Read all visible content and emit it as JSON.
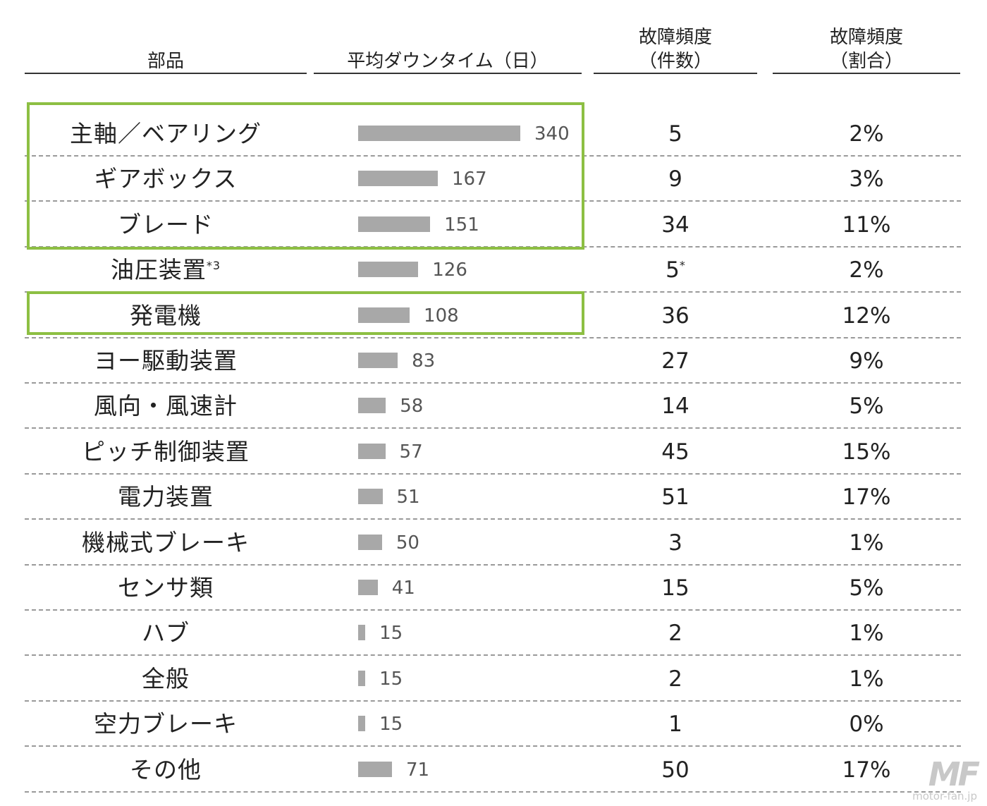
{
  "headers": {
    "part": "部品",
    "downtime": "平均ダウンタイム（日）",
    "freq_count_l1": "故障頻度",
    "freq_count_l2": "（件数）",
    "freq_ratio_l1": "故障頻度",
    "freq_ratio_l2": "（割合）"
  },
  "watermark": {
    "logo": "MF",
    "url": "motor-fan.jp"
  },
  "colors": {
    "bar": "#a8a8a8",
    "highlight": "#8dbf43",
    "dash": "#9a9a9a"
  },
  "chart_data": {
    "type": "table",
    "columns": [
      "部品",
      "平均ダウンタイム（日）",
      "故障頻度（件数）",
      "故障頻度（割合）"
    ],
    "bar_axis_max": 340,
    "highlighted_rows": [
      0,
      1,
      2,
      4
    ],
    "rows": [
      {
        "part": "主軸／ベアリング",
        "downtime": 340,
        "count": "5",
        "ratio": "2%"
      },
      {
        "part": "ギアボックス",
        "downtime": 167,
        "count": "9",
        "ratio": "3%"
      },
      {
        "part": "ブレード",
        "downtime": 151,
        "count": "34",
        "ratio": "11%"
      },
      {
        "part": "油圧装置",
        "part_note": "*3",
        "downtime": 126,
        "count": "5",
        "count_note": "*",
        "ratio": "2%"
      },
      {
        "part": "発電機",
        "downtime": 108,
        "count": "36",
        "ratio": "12%"
      },
      {
        "part": "ヨー駆動装置",
        "downtime": 83,
        "count": "27",
        "ratio": "9%"
      },
      {
        "part": "風向・風速計",
        "downtime": 58,
        "count": "14",
        "ratio": "5%"
      },
      {
        "part": "ピッチ制御装置",
        "downtime": 57,
        "count": "45",
        "ratio": "15%"
      },
      {
        "part": "電力装置",
        "downtime": 51,
        "count": "51",
        "ratio": "17%"
      },
      {
        "part": "機械式ブレーキ",
        "downtime": 50,
        "count": "3",
        "ratio": "1%"
      },
      {
        "part": "センサ類",
        "downtime": 41,
        "count": "15",
        "ratio": "5%"
      },
      {
        "part": "ハブ",
        "downtime": 15,
        "count": "2",
        "ratio": "1%"
      },
      {
        "part": "全般",
        "downtime": 15,
        "count": "2",
        "ratio": "1%"
      },
      {
        "part": "空力ブレーキ",
        "downtime": 15,
        "count": "1",
        "ratio": "0%"
      },
      {
        "part": "その他",
        "downtime": 71,
        "count": "50",
        "ratio": "17%"
      }
    ]
  }
}
